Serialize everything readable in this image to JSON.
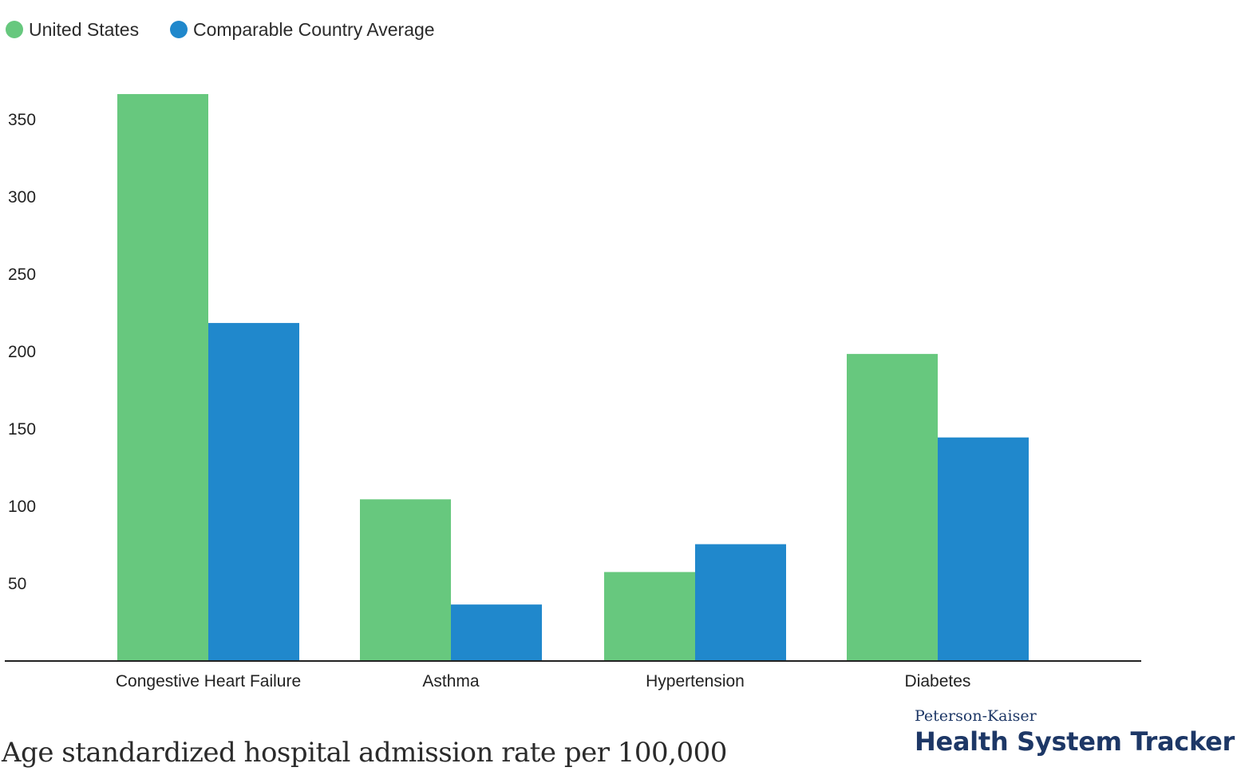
{
  "colors": {
    "us": "#67c87e",
    "comparable": "#2088cc",
    "axis": "#222222",
    "brand": "#1d3766"
  },
  "legend": [
    {
      "label": "United States",
      "color": "#67c87e"
    },
    {
      "label": "Comparable Country Average",
      "color": "#2088cc"
    }
  ],
  "chart_data": {
    "type": "bar",
    "categories": [
      "Congestive Heart Failure",
      "Asthma",
      "Hypertension",
      "Diabetes"
    ],
    "series": [
      {
        "name": "United States",
        "values": [
          366,
          104,
          57,
          198
        ]
      },
      {
        "name": "Comparable Country Average",
        "values": [
          218,
          36,
          75,
          144
        ]
      }
    ],
    "yticks": [
      50,
      100,
      150,
      200,
      250,
      300,
      350
    ],
    "ylim": [
      0,
      400
    ],
    "grid": false,
    "legend_position": "top-left",
    "xlabel": "",
    "ylabel": "",
    "caption": "Age standardized hospital admission rate per 100,000"
  },
  "brand": {
    "top": "Peterson-Kaiser",
    "main": "Health System Tracker"
  }
}
